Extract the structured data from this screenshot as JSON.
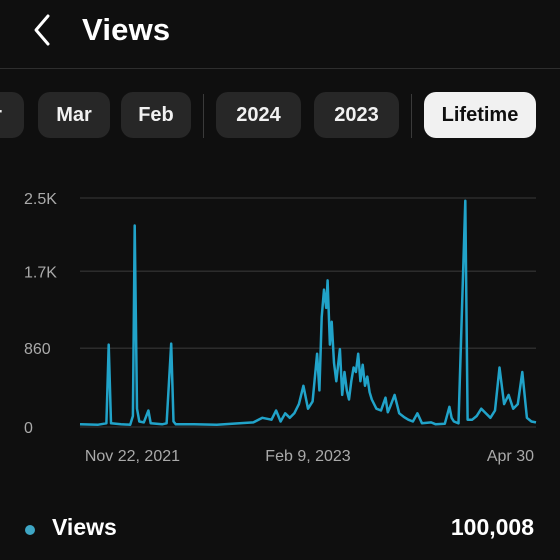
{
  "header": {
    "title": "Views"
  },
  "chips": [
    {
      "label": "r",
      "active": false
    },
    {
      "label": "Mar",
      "active": false
    },
    {
      "label": "Feb",
      "active": false
    },
    {
      "label": "2024",
      "active": false
    },
    {
      "label": "2023",
      "active": false
    },
    {
      "label": "Lifetime",
      "active": true
    }
  ],
  "colors": {
    "line": "#21a3c9",
    "background": "#0f0f0f",
    "chip": "#272727",
    "chip_active": "#f1f1f1"
  },
  "chart_data": {
    "type": "line",
    "series_color": "#21a3c9",
    "ylim": [
      0,
      2500
    ],
    "yticks": [
      "2.5K",
      "1.7K",
      "860",
      "0"
    ],
    "ytick_values": [
      2500,
      1700,
      860,
      0
    ],
    "xtick_labels": [
      "Nov 22, 2021",
      "Feb 9, 2023",
      "Apr 30"
    ],
    "xlim": [
      0,
      100
    ],
    "xtick_positions": [
      11.5,
      50.0,
      94.0
    ],
    "grid": true,
    "points": [
      [
        0,
        30
      ],
      [
        4,
        25
      ],
      [
        5.8,
        40
      ],
      [
        6.3,
        900
      ],
      [
        6.8,
        40
      ],
      [
        9,
        30
      ],
      [
        11,
        25
      ],
      [
        11.6,
        120
      ],
      [
        12,
        2200
      ],
      [
        12.5,
        200
      ],
      [
        13,
        60
      ],
      [
        14,
        50
      ],
      [
        15,
        180
      ],
      [
        15.5,
        40
      ],
      [
        18,
        30
      ],
      [
        19,
        40
      ],
      [
        20,
        910
      ],
      [
        20.5,
        60
      ],
      [
        21,
        30
      ],
      [
        25,
        30
      ],
      [
        30,
        25
      ],
      [
        35,
        40
      ],
      [
        38,
        50
      ],
      [
        40,
        100
      ],
      [
        42,
        80
      ],
      [
        43,
        180
      ],
      [
        44,
        60
      ],
      [
        45,
        150
      ],
      [
        46,
        100
      ],
      [
        47,
        150
      ],
      [
        48,
        250
      ],
      [
        49,
        450
      ],
      [
        50,
        200
      ],
      [
        51,
        280
      ],
      [
        52,
        800
      ],
      [
        52.5,
        400
      ],
      [
        53,
        1200
      ],
      [
        53.5,
        1500
      ],
      [
        54,
        1300
      ],
      [
        54.3,
        1600
      ],
      [
        54.8,
        900
      ],
      [
        55.2,
        1150
      ],
      [
        55.7,
        700
      ],
      [
        56.2,
        500
      ],
      [
        57,
        850
      ],
      [
        57.5,
        350
      ],
      [
        58,
        600
      ],
      [
        58.5,
        400
      ],
      [
        59,
        300
      ],
      [
        59.5,
        500
      ],
      [
        60,
        650
      ],
      [
        60.5,
        600
      ],
      [
        61,
        800
      ],
      [
        61.5,
        500
      ],
      [
        62,
        680
      ],
      [
        62.5,
        450
      ],
      [
        63,
        550
      ],
      [
        63.5,
        380
      ],
      [
        64,
        300
      ],
      [
        65,
        200
      ],
      [
        66,
        180
      ],
      [
        67,
        320
      ],
      [
        67.5,
        160
      ],
      [
        68,
        220
      ],
      [
        69,
        350
      ],
      [
        70,
        150
      ],
      [
        71,
        110
      ],
      [
        72,
        80
      ],
      [
        73,
        60
      ],
      [
        74,
        150
      ],
      [
        75,
        40
      ],
      [
        77,
        50
      ],
      [
        78,
        30
      ],
      [
        80,
        35
      ],
      [
        81,
        220
      ],
      [
        81.5,
        100
      ],
      [
        82,
        60
      ],
      [
        83,
        40
      ],
      [
        84.5,
        2470
      ],
      [
        85,
        80
      ],
      [
        86,
        80
      ],
      [
        87,
        120
      ],
      [
        88,
        200
      ],
      [
        89,
        150
      ],
      [
        90,
        100
      ],
      [
        91,
        180
      ],
      [
        92,
        650
      ],
      [
        93,
        250
      ],
      [
        94,
        350
      ],
      [
        95,
        200
      ],
      [
        96,
        250
      ],
      [
        97,
        600
      ],
      [
        98,
        100
      ],
      [
        99,
        60
      ],
      [
        100,
        50
      ]
    ]
  },
  "legend": {
    "label": "Views",
    "value": "100,008"
  }
}
